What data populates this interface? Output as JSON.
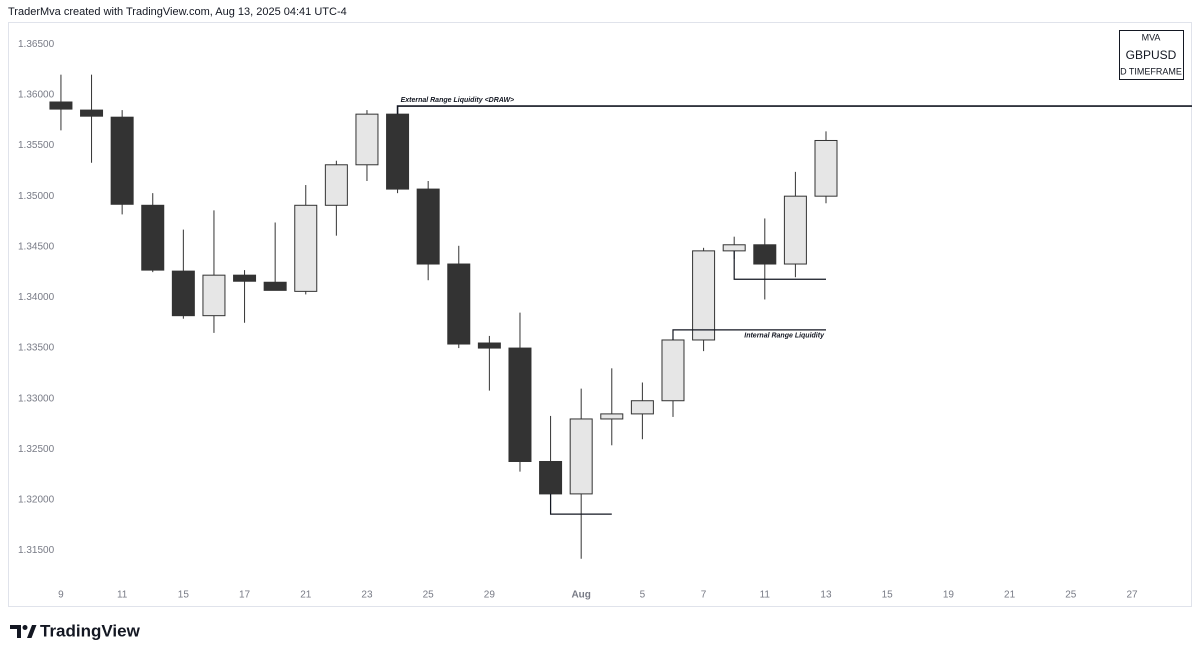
{
  "header": {
    "text": "TraderMva created with TradingView.com, Aug 13, 2025 04:41 UTC-4"
  },
  "footer": {
    "brand": "TradingView"
  },
  "chart_data": {
    "type": "candlestick",
    "info_box": {
      "author": "MVA",
      "symbol": "GBPUSD",
      "timeframe": "D TIMEFRAME"
    },
    "categories": [
      "9",
      null,
      "11",
      null,
      "15",
      null,
      "17",
      null,
      "21",
      null,
      "23",
      null,
      "25",
      null,
      "29",
      null,
      null,
      "Aug",
      null,
      "5",
      null,
      "7",
      null,
      "11",
      null,
      "13",
      null,
      "15",
      null,
      "19",
      null,
      "21",
      null,
      "25",
      null,
      "27"
    ],
    "open": [
      1.3593,
      1.3585,
      1.3578,
      1.3491,
      1.3426,
      1.3382,
      1.3422,
      1.3415,
      1.3406,
      1.3491,
      1.3531,
      1.3581,
      1.3507,
      1.3433,
      1.3355,
      1.335,
      1.3238,
      1.3206,
      1.328,
      1.3285,
      1.3298,
      1.3358,
      1.3446,
      1.3452,
      1.3433,
      1.35,
      null,
      null,
      null,
      null,
      null,
      null,
      null,
      null,
      null,
      null
    ],
    "high": [
      1.362,
      1.362,
      1.3585,
      1.3503,
      1.3467,
      1.3486,
      1.3427,
      1.3474,
      1.3511,
      1.3535,
      1.3585,
      1.3585,
      1.3515,
      1.3451,
      1.3362,
      1.3385,
      1.3283,
      1.331,
      1.333,
      1.3316,
      1.3367,
      1.3449,
      1.346,
      1.3478,
      1.3524,
      1.3564,
      null,
      null,
      null,
      null,
      null,
      null,
      null,
      null,
      null,
      null
    ],
    "low": [
      1.3565,
      1.3533,
      1.3482,
      1.3425,
      1.3379,
      1.3365,
      1.3375,
      1.3407,
      1.3403,
      1.3461,
      1.3515,
      1.3503,
      1.3417,
      1.335,
      1.3308,
      1.3228,
      1.3187,
      1.3142,
      1.3254,
      1.326,
      1.3282,
      1.3347,
      1.3438,
      1.3398,
      1.342,
      1.3493,
      null,
      null,
      null,
      null,
      null,
      null,
      null,
      null,
      null,
      null
    ],
    "close": [
      1.3586,
      1.3579,
      1.3492,
      1.3427,
      1.3382,
      1.3422,
      1.3416,
      1.3407,
      1.3491,
      1.3531,
      1.3581,
      1.3507,
      1.3433,
      1.3354,
      1.335,
      1.3238,
      1.3206,
      1.328,
      1.3285,
      1.3298,
      1.3358,
      1.3446,
      1.3452,
      1.3433,
      1.35,
      1.3555,
      null,
      null,
      null,
      null,
      null,
      null,
      null,
      null,
      null,
      null
    ],
    "up_color": "#e6e6e6",
    "down_color": "#333333",
    "xlim": [
      -1.73,
      36.96
    ],
    "ylim": [
      1.3119,
      1.3672
    ],
    "yticks": [
      {
        "value": 1.315,
        "label": "1.31500"
      },
      {
        "value": 1.32,
        "label": "1.32000"
      },
      {
        "value": 1.325,
        "label": "1.32500"
      },
      {
        "value": 1.33,
        "label": "1.33000"
      },
      {
        "value": 1.335,
        "label": "1.33500"
      },
      {
        "value": 1.34,
        "label": "1.34000"
      },
      {
        "value": 1.345,
        "label": "1.34500"
      },
      {
        "value": 1.35,
        "label": "1.35000"
      },
      {
        "value": 1.355,
        "label": "1.35500"
      },
      {
        "value": 1.36,
        "label": "1.36000"
      },
      {
        "value": 1.365,
        "label": "1.36500"
      }
    ],
    "annotations": [
      {
        "text": "External Range Liquidity <DRAW>",
        "x": [
          11,
          11,
          36.96
        ],
        "y": [
          1.3581,
          1.3589,
          1.3589
        ],
        "width": 1.6
      },
      {
        "text": "Internal Range Liquidity",
        "x": [
          20,
          20,
          25
        ],
        "y": [
          1.3358,
          1.3368,
          1.3368
        ],
        "width": 1.2
      },
      {
        "x": [
          22,
          22,
          25
        ],
        "y": [
          1.3446,
          1.3418,
          1.3418
        ],
        "width": 1.2
      },
      {
        "x": [
          16,
          16,
          18
        ],
        "y": [
          1.3206,
          1.3186,
          1.3186
        ],
        "width": 1.2
      }
    ]
  }
}
